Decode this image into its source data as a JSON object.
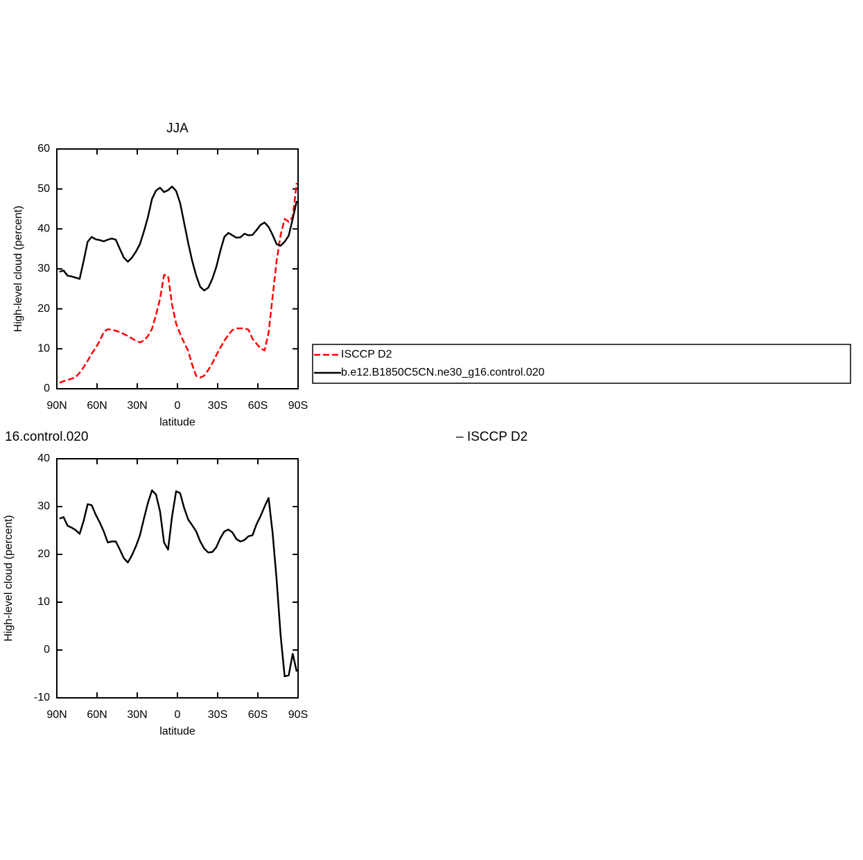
{
  "chart_data": [
    {
      "type": "line",
      "title": "JJA",
      "x_label": "latitude",
      "y_label": "High-level cloud (percent)",
      "x": [
        88,
        85,
        82,
        79,
        76,
        73,
        70,
        67,
        64,
        61,
        58,
        55,
        52,
        49,
        46,
        43,
        40,
        37,
        34,
        31,
        28,
        25,
        22,
        19,
        16,
        13,
        10,
        7,
        4,
        1,
        -2,
        -5,
        -8,
        -11,
        -14,
        -17,
        -20,
        -23,
        -26,
        -29,
        -32,
        -35,
        -38,
        -41,
        -44,
        -47,
        -50,
        -53,
        -56,
        -59,
        -62,
        -65,
        -68,
        -71,
        -74,
        -77,
        -80,
        -83,
        -86,
        -89
      ],
      "series": [
        {
          "name": "ISCCP D2",
          "color": "#ff0000",
          "dashed": true,
          "values": [
            1.5,
            1.9,
            2.2,
            2.5,
            2.9,
            4,
            5.4,
            7,
            8.8,
            10.2,
            12,
            14.2,
            14.9,
            14.8,
            14.5,
            14.2,
            13.7,
            13.2,
            12.6,
            12,
            11.6,
            12.1,
            13.2,
            15,
            18.5,
            22.5,
            28.5,
            28.3,
            21,
            16.3,
            13.8,
            11.5,
            9.5,
            6,
            3.2,
            2.8,
            3.3,
            4.7,
            6.4,
            8.4,
            10.3,
            12,
            13.5,
            14.7,
            15.1,
            15.1,
            15.1,
            14.8,
            12.5,
            11.3,
            10.1,
            9.6,
            14,
            23,
            32,
            38.5,
            42.5,
            41.8,
            43,
            51.5
          ]
        },
        {
          "name": "b.e12.B1850C5CN.ne30_g16.control.020",
          "color": "#000000",
          "dashed": false,
          "values": [
            29.3,
            29.6,
            28.3,
            28.1,
            27.8,
            27.5,
            32,
            36.8,
            38,
            37.4,
            37.2,
            36.9,
            37.3,
            37.6,
            37.3,
            35,
            32.8,
            31.8,
            32.8,
            34.3,
            36.2,
            39.4,
            43,
            47.5,
            49.6,
            50.3,
            49.2,
            49.7,
            50.6,
            49.5,
            46.5,
            41.5,
            36.5,
            32,
            28.3,
            25.5,
            24.6,
            25.3,
            27.5,
            30.5,
            34.5,
            38,
            39,
            38.4,
            37.8,
            37.9,
            38.8,
            38.4,
            38.5,
            39.7,
            41,
            41.6,
            40.5,
            38.5,
            36.2,
            35.8,
            36.8,
            38.3,
            42.5,
            47
          ]
        }
      ],
      "xlim": [
        90,
        -90
      ],
      "ylim": [
        0,
        60
      ],
      "xticks": [
        {
          "value": 90,
          "label": "90N"
        },
        {
          "value": 60,
          "label": "60N"
        },
        {
          "value": 30,
          "label": "30N"
        },
        0,
        {
          "value": -30,
          "label": "30S"
        },
        {
          "value": -60,
          "label": "60S"
        },
        {
          "value": -90,
          "label": "90S"
        }
      ],
      "yticks": [
        0,
        10,
        20,
        30,
        40,
        50,
        60
      ],
      "legend": "right"
    },
    {
      "type": "line",
      "title_parts": [
        "16.control.020",
        "– ISCCP D2"
      ],
      "x_label": "latitude",
      "y_label": "High-level cloud (percent)",
      "x": [
        88,
        85,
        82,
        79,
        76,
        73,
        70,
        67,
        64,
        61,
        58,
        55,
        52,
        49,
        46,
        43,
        40,
        37,
        34,
        31,
        28,
        25,
        22,
        19,
        16,
        13,
        10,
        7,
        4,
        1,
        -2,
        -5,
        -8,
        -11,
        -14,
        -17,
        -20,
        -23,
        -26,
        -29,
        -32,
        -35,
        -38,
        -41,
        -44,
        -47,
        -50,
        -53,
        -56,
        -59,
        -62,
        -65,
        -68,
        -71,
        -74,
        -77,
        -80,
        -83,
        -86,
        -89
      ],
      "series": [
        {
          "color": "#000000",
          "dashed": false,
          "values": [
            27.5,
            27.8,
            26,
            25.6,
            25.1,
            24.3,
            27,
            30.5,
            30.3,
            28.3,
            26.7,
            24.8,
            22.5,
            22.7,
            22.7,
            21,
            19.2,
            18.3,
            19.8,
            21.7,
            24,
            27.5,
            30.8,
            33.4,
            32.5,
            29,
            22.5,
            21,
            28,
            33.2,
            32.8,
            29.7,
            27.3,
            26.1,
            24.8,
            22.7,
            21.2,
            20.4,
            20.5,
            21.5,
            23.4,
            24.8,
            25.2,
            24.6,
            23.2,
            22.7,
            23,
            23.8,
            24,
            26.3,
            28,
            30,
            31.8,
            24.5,
            14.7,
            3,
            -5.5,
            -5.3,
            -0.8,
            -4.5
          ]
        }
      ],
      "xlim": [
        90,
        -90
      ],
      "ylim": [
        -10,
        40
      ],
      "xticks": [
        {
          "value": 90,
          "label": "90N"
        },
        {
          "value": 60,
          "label": "60N"
        },
        {
          "value": 30,
          "label": "30N"
        },
        0,
        {
          "value": -30,
          "label": "30S"
        },
        {
          "value": -60,
          "label": "60S"
        },
        {
          "value": -90,
          "label": "90S"
        }
      ],
      "yticks": [
        -10,
        0,
        10,
        20,
        30,
        40
      ]
    }
  ]
}
